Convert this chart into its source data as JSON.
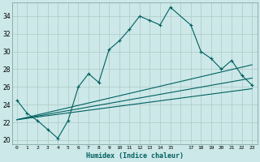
{
  "xlabel": "Humidex (Indice chaleur)",
  "bg_color": "#cce8e8",
  "grid_color": "#b0c8c8",
  "line_color": "#006060",
  "xlim": [
    -0.5,
    23.5
  ],
  "ylim": [
    19.5,
    35.5
  ],
  "ytick_values": [
    20,
    22,
    24,
    26,
    28,
    30,
    32,
    34
  ],
  "line1_x": [
    0,
    1,
    2,
    3,
    4,
    5,
    6,
    7,
    8,
    9,
    10,
    11,
    12,
    13,
    14,
    15,
    17,
    18,
    19,
    20,
    21,
    22,
    23
  ],
  "line1_y": [
    24.5,
    23.0,
    22.2,
    21.2,
    20.2,
    22.2,
    26.0,
    27.5,
    26.5,
    30.2,
    31.2,
    32.5,
    34.0,
    33.5,
    33.0,
    35.0,
    33.0,
    30.0,
    29.2,
    28.0,
    29.0,
    27.3,
    26.2
  ],
  "line2_x": [
    0,
    23
  ],
  "line2_y": [
    22.3,
    25.8
  ],
  "line3_x": [
    0,
    23
  ],
  "line3_y": [
    22.3,
    28.5
  ],
  "line4_x": [
    0,
    23
  ],
  "line4_y": [
    22.3,
    27.0
  ]
}
